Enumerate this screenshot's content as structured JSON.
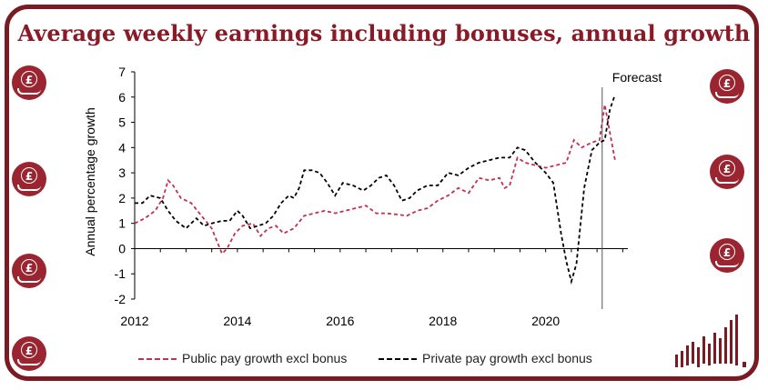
{
  "title": "Average weekly earnings including bonuses, annual growth",
  "colors": {
    "brand": "#8b1a27",
    "public": "#c2314f",
    "private": "#000000"
  },
  "icons": [
    "pound-hand-icon"
  ],
  "chart_data": {
    "type": "line",
    "ylabel": "Annual percentage growth",
    "xlabel": "",
    "ylim": [
      -2,
      7
    ],
    "yticks": [
      -2,
      -1,
      0,
      1,
      2,
      3,
      4,
      5,
      6,
      7
    ],
    "xlim": [
      2012,
      2021.6
    ],
    "xticks": [
      "2012",
      "2014",
      "2016",
      "2018",
      "2020"
    ],
    "annotation": {
      "text": "Forecast",
      "x": 2021.1
    },
    "legend_position": "bottom",
    "series": [
      {
        "name": "Public pay growth excl bonus",
        "color": "#c2314f",
        "x": [
          2012.0,
          2012.2,
          2012.4,
          2012.55,
          2012.65,
          2012.75,
          2012.9,
          2013.1,
          2013.3,
          2013.5,
          2013.6,
          2013.7,
          2013.8,
          2013.95,
          2014.1,
          2014.3,
          2014.45,
          2014.6,
          2014.75,
          2014.9,
          2015.1,
          2015.3,
          2015.5,
          2015.7,
          2015.9,
          2016.1,
          2016.3,
          2016.5,
          2016.7,
          2016.9,
          2017.1,
          2017.3,
          2017.5,
          2017.7,
          2017.9,
          2018.1,
          2018.3,
          2018.5,
          2018.7,
          2018.9,
          2019.1,
          2019.2,
          2019.3,
          2019.45,
          2019.6,
          2019.8,
          2020.0,
          2020.2,
          2020.4,
          2020.55,
          2020.7,
          2020.9,
          2021.05,
          2021.15,
          2021.25,
          2021.35
        ],
        "values": [
          1.0,
          1.2,
          1.5,
          2.0,
          2.7,
          2.5,
          2.0,
          1.8,
          1.3,
          0.8,
          0.3,
          -0.2,
          0.0,
          0.6,
          0.9,
          1.0,
          0.5,
          0.8,
          0.9,
          0.6,
          0.8,
          1.3,
          1.4,
          1.5,
          1.4,
          1.5,
          1.6,
          1.7,
          1.4,
          1.4,
          1.35,
          1.3,
          1.5,
          1.6,
          1.9,
          2.1,
          2.4,
          2.2,
          2.8,
          2.7,
          2.8,
          2.4,
          2.5,
          3.6,
          3.4,
          3.3,
          3.2,
          3.3,
          3.4,
          4.3,
          4.0,
          4.2,
          4.3,
          5.7,
          4.6,
          3.5
        ]
      },
      {
        "name": "Private pay growth excl bonus",
        "color": "#000000",
        "x": [
          2012.0,
          2012.15,
          2012.3,
          2012.5,
          2012.65,
          2012.8,
          2013.0,
          2013.2,
          2013.35,
          2013.5,
          2013.7,
          2013.85,
          2014.0,
          2014.1,
          2014.25,
          2014.4,
          2014.55,
          2014.7,
          2014.85,
          2015.0,
          2015.1,
          2015.2,
          2015.3,
          2015.45,
          2015.6,
          2015.75,
          2015.9,
          2016.05,
          2016.25,
          2016.45,
          2016.6,
          2016.75,
          2016.9,
          2017.05,
          2017.2,
          2017.35,
          2017.5,
          2017.7,
          2017.9,
          2018.1,
          2018.3,
          2018.5,
          2018.7,
          2018.9,
          2019.1,
          2019.3,
          2019.45,
          2019.6,
          2019.8,
          2020.0,
          2020.15,
          2020.3,
          2020.4,
          2020.5,
          2020.6,
          2020.75,
          2020.9,
          2021.05,
          2021.15,
          2021.25,
          2021.35
        ],
        "values": [
          1.8,
          1.8,
          2.1,
          2.0,
          1.5,
          1.1,
          0.8,
          1.2,
          0.9,
          1.0,
          1.1,
          1.1,
          1.5,
          1.3,
          0.8,
          0.9,
          1.0,
          1.3,
          1.8,
          2.1,
          2.0,
          2.4,
          3.1,
          3.1,
          3.0,
          2.6,
          2.1,
          2.6,
          2.5,
          2.3,
          2.5,
          2.8,
          2.9,
          2.5,
          1.9,
          2.0,
          2.3,
          2.5,
          2.5,
          3.0,
          2.9,
          3.2,
          3.4,
          3.5,
          3.6,
          3.6,
          4.0,
          3.9,
          3.4,
          3.0,
          2.6,
          0.6,
          -0.5,
          -1.3,
          -0.6,
          2.4,
          3.9,
          4.2,
          4.3,
          5.5,
          6.1
        ]
      }
    ]
  }
}
